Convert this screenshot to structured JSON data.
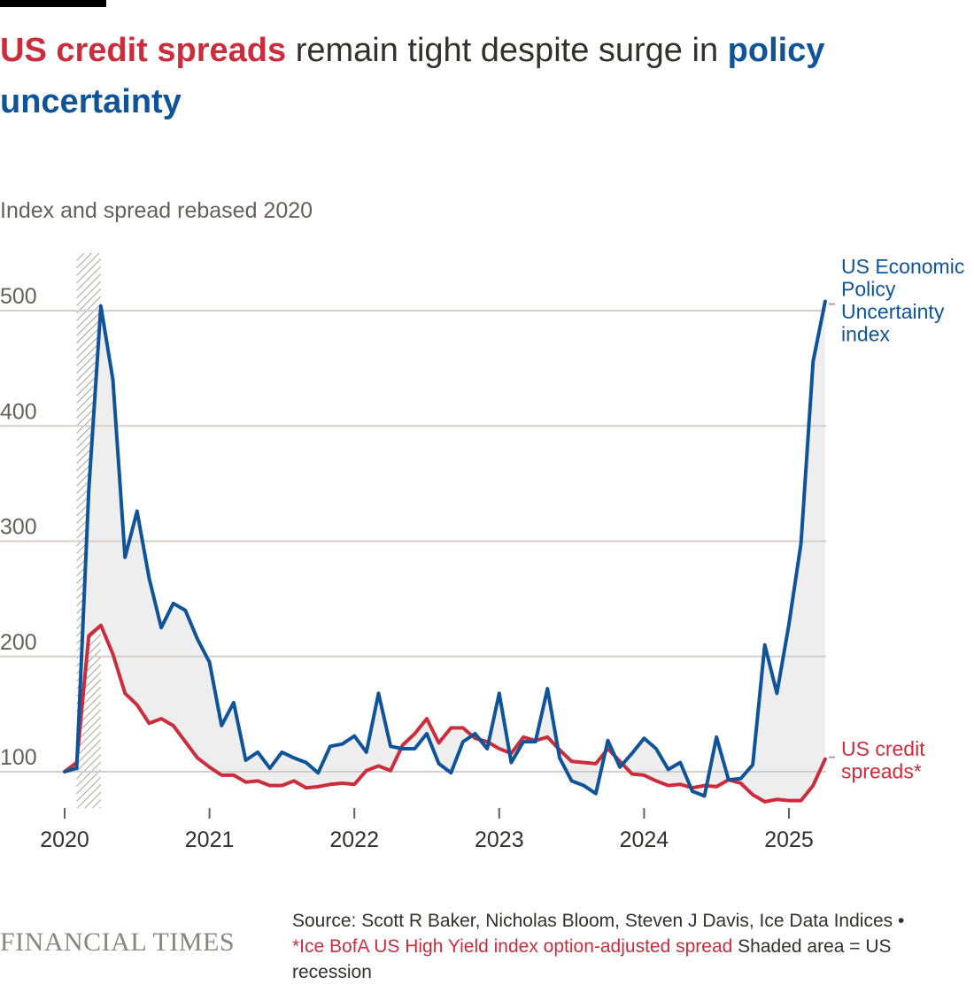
{
  "title": {
    "part1": "US credit spreads",
    "part2": " remain tight despite surge in ",
    "part3": "policy uncertainty"
  },
  "subtitle": "Index and spread rebased 2020",
  "source": {
    "main": "Source: Scott R Baker, Nicholas Bloom, Steven J Davis, Ice Data Indices •",
    "footnote": "*Ice BofA US High Yield index option-adjusted spread",
    "note": " Shaded area = US recession"
  },
  "brand": "FINANCIAL TIMES",
  "colors": {
    "uncertainty": "#0f5499",
    "spreads": "#cc2d3c",
    "fill": "#eeeeee",
    "grid": "#d4cfca"
  },
  "chart_data": {
    "type": "line",
    "ylim": [
      65,
      550
    ],
    "yticks": [
      100,
      200,
      300,
      400,
      500
    ],
    "xlim": [
      2020.0,
      2025.37
    ],
    "xticks": [
      "2020",
      "2021",
      "2022",
      "2023",
      "2024",
      "2025"
    ],
    "recession": [
      2020.083,
      2020.25
    ],
    "grid": true,
    "series": [
      {
        "name": "US Economic Policy Uncertainty index",
        "x": [
          2020.0,
          2020.083,
          2020.167,
          2020.25,
          2020.333,
          2020.417,
          2020.5,
          2020.583,
          2020.667,
          2020.75,
          2020.833,
          2020.917,
          2021.0,
          2021.083,
          2021.167,
          2021.25,
          2021.333,
          2021.417,
          2021.5,
          2021.583,
          2021.667,
          2021.75,
          2021.833,
          2021.917,
          2022.0,
          2022.083,
          2022.167,
          2022.25,
          2022.333,
          2022.417,
          2022.5,
          2022.583,
          2022.667,
          2022.75,
          2022.833,
          2022.917,
          2023.0,
          2023.083,
          2023.167,
          2023.25,
          2023.333,
          2023.417,
          2023.5,
          2023.583,
          2023.667,
          2023.75,
          2023.833,
          2023.917,
          2024.0,
          2024.083,
          2024.167,
          2024.25,
          2024.333,
          2024.417,
          2024.5,
          2024.583,
          2024.667,
          2024.75,
          2024.833,
          2024.917,
          2025.0,
          2025.083,
          2025.167,
          2025.25
        ],
        "values": [
          100,
          103,
          345,
          504,
          440,
          286,
          326,
          268,
          225,
          246,
          240,
          215,
          195,
          140,
          160,
          110,
          117,
          103,
          117,
          112,
          108,
          99,
          122,
          124,
          131,
          117,
          168,
          122,
          120,
          120,
          133,
          107,
          99,
          126,
          133,
          120,
          168,
          108,
          126,
          126,
          172,
          112,
          92,
          88,
          81,
          127,
          104,
          116,
          129,
          120,
          102,
          108,
          83,
          79,
          130,
          93,
          94,
          106,
          210,
          168,
          228,
          298,
          456,
          508
        ]
      },
      {
        "name": "US credit spreads*",
        "x": [
          2020.0,
          2020.083,
          2020.167,
          2020.25,
          2020.333,
          2020.417,
          2020.5,
          2020.583,
          2020.667,
          2020.75,
          2020.833,
          2020.917,
          2021.0,
          2021.083,
          2021.167,
          2021.25,
          2021.333,
          2021.417,
          2021.5,
          2021.583,
          2021.667,
          2021.75,
          2021.833,
          2021.917,
          2022.0,
          2022.083,
          2022.167,
          2022.25,
          2022.333,
          2022.417,
          2022.5,
          2022.583,
          2022.667,
          2022.75,
          2022.833,
          2022.917,
          2023.0,
          2023.083,
          2023.167,
          2023.25,
          2023.333,
          2023.417,
          2023.5,
          2023.583,
          2023.667,
          2023.75,
          2023.833,
          2023.917,
          2024.0,
          2024.083,
          2024.167,
          2024.25,
          2024.333,
          2024.417,
          2024.5,
          2024.583,
          2024.667,
          2024.75,
          2024.833,
          2024.917,
          2025.0,
          2025.083,
          2025.167,
          2025.25
        ],
        "values": [
          100,
          108,
          218,
          227,
          202,
          168,
          158,
          142,
          146,
          140,
          126,
          112,
          104,
          97,
          97,
          91,
          92,
          88,
          88,
          92,
          86,
          87,
          89,
          90,
          89,
          101,
          105,
          101,
          123,
          133,
          146,
          125,
          138,
          138,
          129,
          126,
          120,
          116,
          130,
          127,
          130,
          119,
          109,
          108,
          107,
          120,
          109,
          98,
          97,
          92,
          88,
          89,
          86,
          88,
          87,
          93,
          90,
          80,
          74,
          76,
          75,
          75,
          88,
          111
        ]
      }
    ]
  }
}
